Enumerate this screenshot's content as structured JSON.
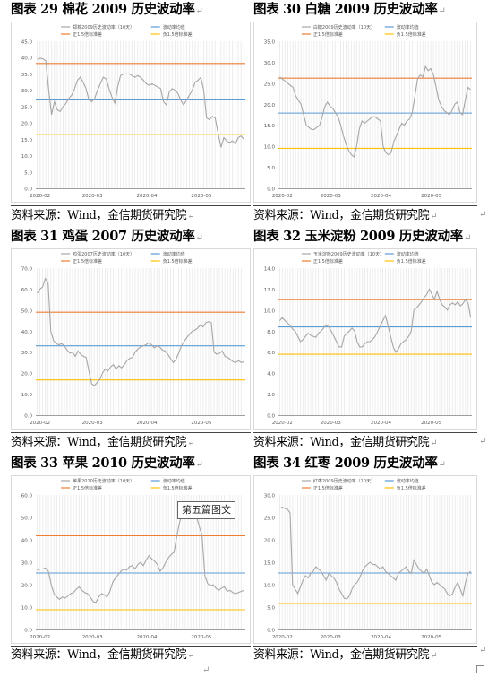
{
  "colors": {
    "series": "#a6a6a6",
    "mean": "#5b9bd5",
    "upper": "#ed7d31",
    "lower": "#ffc000",
    "axis": "#7f7f7f",
    "stripe": "#ececec"
  },
  "source_text": "资料来源：Wind，金信期货研究院",
  "paragraph_mark": "↵",
  "callout": "第五篇图文",
  "legend_common": {
    "mean": "波动率均值",
    "upper": "正1.5倍标准差",
    "lower": "负1.5倍标准差"
  },
  "chart_data": [
    {
      "type": "line",
      "title": "图表 29 棉花 2009 历史波动率",
      "legend": {
        "series": "郑棉2009历史波动率（10天）",
        "mean": "波动率均值",
        "upper": "正1.5倍标准差",
        "lower": "负1.5倍标准差"
      },
      "ylim": [
        0,
        45
      ],
      "yticks": [
        "0.0",
        "5.0",
        "10.0",
        "15.0",
        "20.0",
        "25.0",
        "30.0",
        "35.0",
        "40.0",
        "45.0"
      ],
      "xticks": [
        "2020-02",
        "2020-03",
        "2020-04",
        "2020-05"
      ],
      "mean": 27.3,
      "upper": 38.2,
      "lower": 16.4,
      "values": [
        39.5,
        39.8,
        39.6,
        39.0,
        30.0,
        22.5,
        26.5,
        24.0,
        23.5,
        25.0,
        26.0,
        27.5,
        28.5,
        30.5,
        33.0,
        34.0,
        32.5,
        30.5,
        27.0,
        26.5,
        27.5,
        30.0,
        32.0,
        34.0,
        33.5,
        30.5,
        28.0,
        26.0,
        31.0,
        34.5,
        35.0,
        35.0,
        35.0,
        34.5,
        34.0,
        34.5,
        34.0,
        33.0,
        32.0,
        31.5,
        32.0,
        31.5,
        31.0,
        30.5,
        26.5,
        25.5,
        29.5,
        30.5,
        30.0,
        29.0,
        27.0,
        25.5,
        27.0,
        28.5,
        30.0,
        32.5,
        33.0,
        34.0,
        30.0,
        21.5,
        21.0,
        22.0,
        21.5,
        17.0,
        12.5,
        15.5,
        14.5,
        14.0,
        14.5,
        13.5,
        15.5,
        16.0,
        15.0
      ]
    },
    {
      "type": "line",
      "title": "图表 30 白糖 2009 历史波动率",
      "legend": {
        "series": "白糖2009历史波动率（10天）",
        "mean": "波动率均值",
        "upper": "正1.5倍标准差",
        "lower": "负1.5倍标准差"
      },
      "ylim": [
        0,
        35
      ],
      "yticks": [
        "0.0",
        "5.0",
        "10.0",
        "15.0",
        "20.0",
        "25.0",
        "30.0",
        "35.0"
      ],
      "xticks": [
        "2020-02",
        "2020-03",
        "2020-04",
        "2020-05"
      ],
      "mean": 17.9,
      "upper": 26.2,
      "lower": 9.5,
      "values": [
        26.5,
        26.0,
        25.5,
        25.0,
        24.5,
        24.0,
        22.0,
        21.0,
        20.0,
        17.5,
        15.0,
        14.5,
        14.0,
        14.0,
        14.5,
        15.0,
        17.0,
        19.5,
        20.5,
        19.5,
        19.0,
        18.0,
        17.0,
        15.0,
        12.5,
        10.5,
        9.0,
        8.0,
        7.5,
        10.0,
        14.0,
        16.0,
        15.5,
        16.0,
        16.5,
        17.0,
        17.0,
        16.5,
        16.0,
        10.0,
        8.5,
        8.0,
        8.5,
        11.0,
        12.5,
        14.0,
        15.5,
        15.0,
        16.0,
        16.5,
        18.0,
        22.0,
        26.0,
        27.0,
        26.5,
        29.0,
        28.0,
        28.5,
        27.0,
        24.0,
        21.0,
        19.5,
        18.5,
        18.0,
        17.5,
        18.5,
        20.0,
        20.5,
        18.0,
        17.5,
        21.0,
        24.0,
        23.5
      ]
    },
    {
      "type": "line",
      "title": "图表 31 鸡蛋 2007 历史波动率",
      "legend": {
        "series": "鸡蛋2007历史波动率（10天）",
        "mean": "波动率均值",
        "upper": "正1.5倍标准差",
        "lower": "负1.5倍标准差"
      },
      "ylim": [
        0,
        70
      ],
      "yticks": [
        "0.0",
        "10.0",
        "20.0",
        "30.0",
        "40.0",
        "50.0",
        "60.0",
        "70.0"
      ],
      "xticks": [
        "2020-02",
        "2020-03",
        "2020-04",
        "2020-05"
      ],
      "mean": 33.0,
      "upper": 49.0,
      "lower": 16.8,
      "values": [
        58.0,
        60.0,
        61.0,
        65.0,
        63.0,
        40.0,
        35.5,
        34.0,
        33.5,
        34.0,
        33.0,
        31.0,
        29.5,
        30.0,
        28.0,
        30.5,
        29.0,
        28.0,
        27.5,
        21.0,
        15.0,
        14.0,
        15.5,
        17.0,
        20.0,
        22.0,
        21.0,
        23.0,
        24.0,
        22.0,
        23.5,
        22.5,
        24.0,
        26.0,
        27.0,
        27.5,
        30.0,
        31.5,
        32.5,
        33.0,
        33.5,
        34.5,
        33.5,
        32.0,
        33.0,
        32.5,
        31.0,
        30.5,
        29.0,
        27.0,
        25.0,
        26.5,
        29.5,
        33.0,
        35.0,
        37.0,
        38.5,
        40.0,
        40.5,
        41.5,
        43.0,
        42.0,
        44.0,
        44.5,
        44.0,
        30.0,
        29.0,
        29.5,
        30.5,
        28.0,
        27.5,
        26.5,
        25.5,
        25.0,
        26.0,
        25.0,
        25.5
      ]
    },
    {
      "type": "line",
      "title": "图表 32 玉米淀粉 2009 历史波动率",
      "legend": {
        "series": "玉米淀粉2009历史波动率（10天）",
        "mean": "波动率均值",
        "upper": "正1.5倍标准差",
        "lower": "负1.5倍标准差"
      },
      "ylim": [
        0,
        14
      ],
      "yticks": [
        "0.0",
        "2.0",
        "4.0",
        "6.0",
        "8.0",
        "10.0",
        "12.0",
        "14.0"
      ],
      "xticks": [
        "2020-02",
        "2020-03",
        "2020-04",
        "2020-05"
      ],
      "mean": 8.4,
      "upper": 11.0,
      "lower": 5.8,
      "values": [
        9.0,
        9.3,
        9.0,
        8.8,
        8.5,
        8.2,
        8.0,
        7.5,
        7.0,
        7.2,
        7.5,
        7.8,
        7.6,
        7.5,
        7.4,
        7.8,
        8.0,
        8.3,
        8.6,
        8.4,
        8.0,
        7.5,
        7.0,
        6.5,
        6.5,
        7.5,
        7.8,
        8.0,
        8.3,
        8.0,
        7.0,
        6.5,
        6.5,
        6.8,
        7.0,
        7.0,
        7.2,
        7.5,
        8.0,
        8.5,
        9.0,
        9.5,
        8.5,
        7.5,
        6.5,
        6.0,
        6.3,
        6.8,
        7.0,
        7.2,
        7.5,
        8.0,
        10.0,
        10.2,
        10.5,
        10.8,
        11.2,
        11.5,
        12.0,
        11.5,
        11.0,
        11.8,
        11.0,
        10.5,
        10.3,
        10.0,
        10.5,
        10.7,
        10.5,
        10.8,
        10.4,
        10.6,
        11.0,
        10.7,
        9.3
      ]
    },
    {
      "type": "line",
      "title": "图表 33 苹果 2010 历史波动率",
      "legend": {
        "series": "苹果2010历史波动率（10天）",
        "mean": "波动率均值",
        "upper": "正1.5倍标准差",
        "lower": "负1.5倍标准差"
      },
      "ylim": [
        0,
        60
      ],
      "yticks": [
        "0.0",
        "10.0",
        "20.0",
        "30.0",
        "40.0",
        "50.0",
        "60.0"
      ],
      "xticks": [
        "2020-02",
        "2020-03",
        "2020-04",
        "2020-05"
      ],
      "mean": 25.2,
      "upper": 41.8,
      "lower": 8.8,
      "values": [
        26.5,
        27.0,
        27.0,
        27.5,
        26.0,
        20.0,
        16.0,
        14.5,
        13.5,
        14.5,
        14.0,
        15.0,
        16.0,
        16.5,
        18.0,
        19.0,
        17.5,
        16.5,
        16.0,
        14.5,
        12.5,
        12.0,
        14.5,
        16.0,
        15.5,
        14.5,
        17.0,
        21.0,
        23.0,
        24.5,
        26.0,
        27.0,
        26.5,
        28.0,
        28.5,
        27.0,
        29.0,
        30.0,
        28.5,
        31.0,
        33.0,
        31.5,
        30.5,
        29.0,
        26.0,
        27.5,
        30.0,
        32.0,
        33.5,
        34.5,
        42.0,
        48.0,
        52.0,
        53.0,
        53.5,
        52.0,
        51.0,
        50.5,
        46.0,
        42.0,
        24.0,
        20.5,
        19.5,
        20.0,
        18.5,
        17.5,
        18.5,
        19.0,
        17.0,
        17.5,
        16.5,
        16.0,
        16.5,
        17.0,
        17.5
      ]
    },
    {
      "type": "line",
      "title": "图表 34 红枣 2009 历史波动率",
      "legend": {
        "series": "红枣2009历史波动率（10天）",
        "mean": "波动率均值",
        "upper": "正1.5倍标准差",
        "lower": "负1.5倍标准差"
      },
      "ylim": [
        0,
        30
      ],
      "yticks": [
        "0.0",
        "5.0",
        "10.0",
        "15.0",
        "20.0",
        "25.0",
        "30.0"
      ],
      "xticks": [
        "2020-02",
        "2020-03",
        "2020-04",
        "2020-05"
      ],
      "mean": 12.6,
      "upper": 19.5,
      "lower": 5.8,
      "values": [
        27.0,
        27.3,
        27.0,
        26.8,
        26.0,
        10.0,
        9.0,
        8.0,
        9.5,
        11.0,
        12.0,
        11.5,
        12.5,
        13.0,
        14.0,
        13.5,
        13.0,
        12.0,
        11.0,
        12.5,
        12.0,
        11.5,
        10.5,
        9.0,
        8.0,
        7.0,
        6.8,
        7.5,
        9.0,
        10.0,
        10.5,
        11.5,
        13.0,
        14.0,
        14.5,
        15.0,
        14.5,
        14.5,
        14.0,
        13.5,
        14.0,
        13.0,
        12.5,
        12.0,
        11.5,
        11.0,
        12.5,
        13.0,
        13.5,
        14.0,
        13.0,
        12.5,
        15.5,
        14.5,
        13.5,
        13.0,
        12.5,
        13.5,
        12.0,
        10.5,
        10.0,
        10.5,
        10.0,
        9.5,
        9.0,
        8.0,
        7.5,
        8.0,
        9.5,
        10.5,
        9.0,
        7.5,
        10.5,
        12.5,
        13.0
      ]
    }
  ]
}
